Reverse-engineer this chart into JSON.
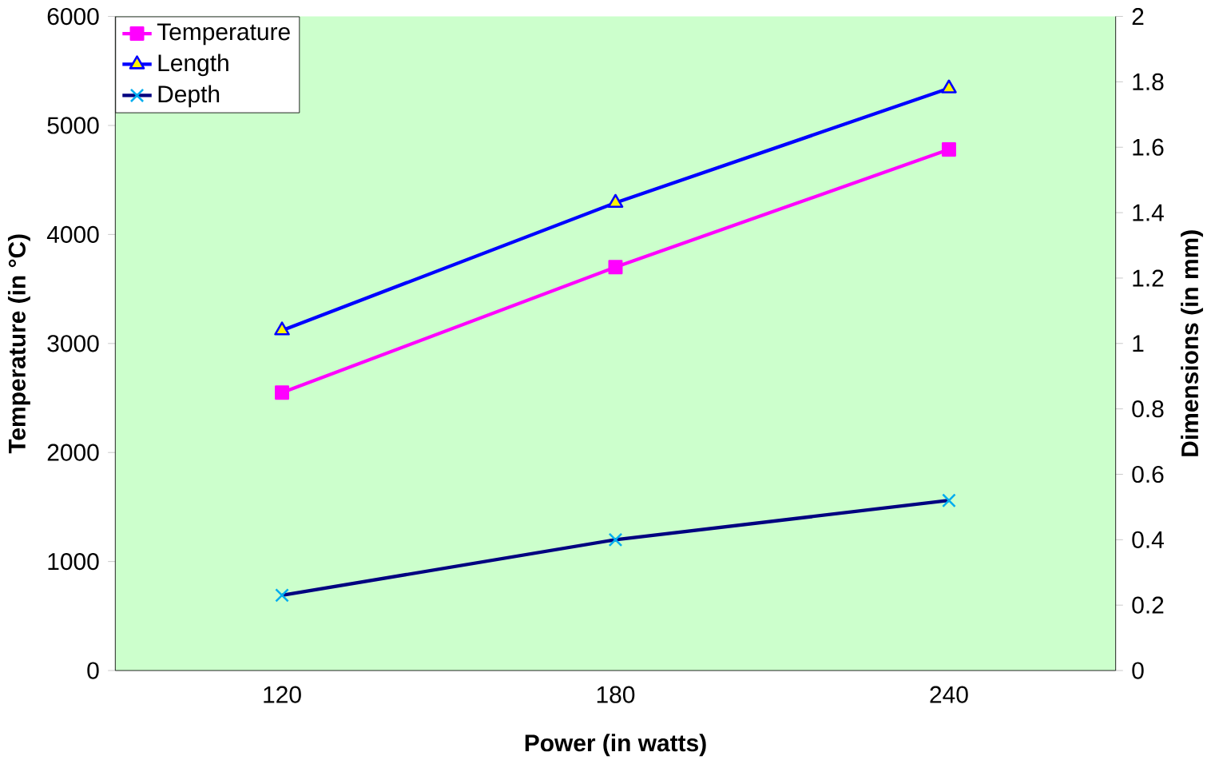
{
  "chart_data": {
    "type": "line",
    "xlabel": "Power (in watts)",
    "ylabel": "Temperature (in °C)",
    "y2label": "Dimensions (in mm)",
    "categories": [
      "120",
      "180",
      "240"
    ],
    "series": [
      {
        "name": "Temperature",
        "color": "#ff00ff",
        "marker": "square",
        "values": [
          2550,
          3700,
          4780
        ]
      },
      {
        "name": "Length",
        "color": "#0000ff",
        "marker": "triangle",
        "axis": "y2",
        "values": [
          1.04,
          1.43,
          1.78
        ]
      },
      {
        "name": "Depth",
        "color": "#000080",
        "marker": "cross",
        "axis": "y2",
        "values": [
          0.23,
          0.4,
          0.52
        ]
      }
    ],
    "ylim": [
      0,
      6000
    ],
    "yticks": [
      0,
      1000,
      2000,
      3000,
      4000,
      5000,
      6000
    ],
    "y2lim": [
      0,
      2
    ],
    "y2ticks": [
      0,
      0.2,
      0.4,
      0.6,
      0.8,
      1,
      1.2,
      1.4,
      1.6,
      1.8,
      2
    ],
    "grid": false,
    "legend": "top left"
  }
}
